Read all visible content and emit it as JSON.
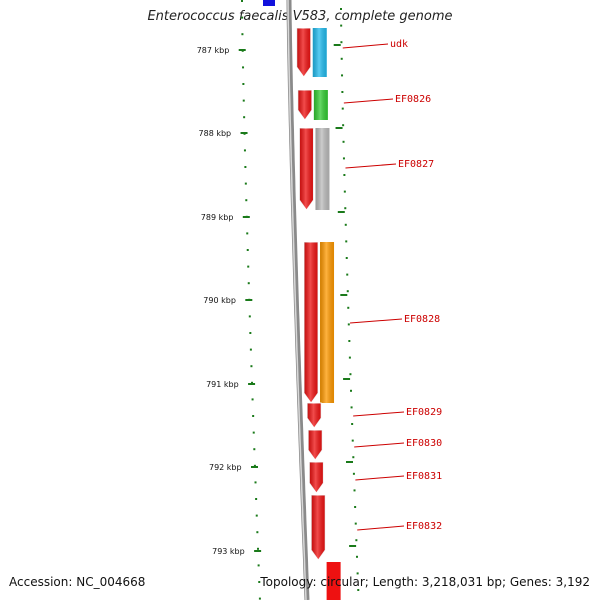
{
  "title": "Enterococcus faecalis V583, complete genome",
  "footer": {
    "accession": "Accession: NC_004668",
    "summary": "Topology: circular; Length: 3,218,031 bp; Genes: 3,192"
  },
  "colors": {
    "backbone": "#8a8a8a",
    "tick": "#1a7a1a",
    "gene_red": "#ee1111",
    "label": "#cc0000"
  },
  "position_ticks": [
    {
      "label": "787 kbp"
    },
    {
      "label": "788 kbp"
    },
    {
      "label": "789 kbp"
    },
    {
      "label": "790 kbp"
    },
    {
      "label": "791 kbp"
    },
    {
      "label": "792 kbp"
    },
    {
      "label": "793 kbp"
    }
  ],
  "genes": [
    {
      "name": "udk",
      "cog_color": "#22bbee",
      "has_cog": true
    },
    {
      "name": "EF0826",
      "cog_color": "#33cc33",
      "has_cog": true
    },
    {
      "name": "EF0827",
      "cog_color": "#bbbbbb",
      "has_cog": true
    },
    {
      "name": "EF0828",
      "cog_color": "#ff9900",
      "has_cog": true
    },
    {
      "name": "EF0829",
      "has_cog": false
    },
    {
      "name": "EF0830",
      "has_cog": false
    },
    {
      "name": "EF0831",
      "has_cog": false
    },
    {
      "name": "EF0832",
      "has_cog": false
    }
  ],
  "upstream_feature_color": "#1111dd"
}
